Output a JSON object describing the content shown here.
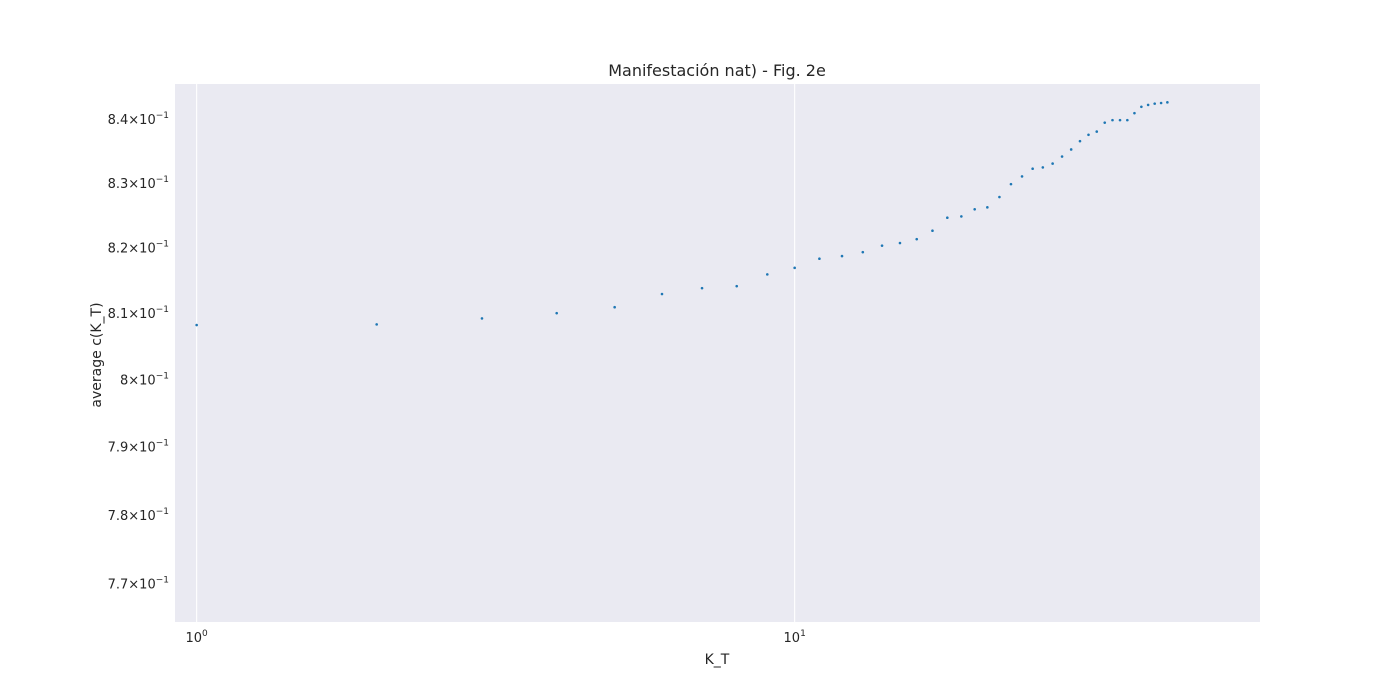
{
  "chart_data": {
    "type": "scatter",
    "title": "Manifestación nat) - Fig. 2e",
    "xlabel": "K_T",
    "ylabel": "average c(K_T)",
    "xscale": "log",
    "yscale": "log",
    "xlim": [
      0.92,
      60
    ],
    "ylim": [
      0.7645,
      0.8455
    ],
    "grid": true,
    "legend": "none",
    "colors": {
      "background": "#eaeaf2",
      "grid": "#ffffff",
      "marker": "#1f77b4",
      "text": "#262626"
    },
    "x_ticks": [
      {
        "value": 1,
        "base": "10",
        "exp": "0"
      },
      {
        "value": 10,
        "base": "10",
        "exp": "1"
      }
    ],
    "y_ticks": [
      {
        "value": 0.77,
        "mant": "7.7",
        "base": "10",
        "exp": "−1"
      },
      {
        "value": 0.78,
        "mant": "7.8",
        "base": "10",
        "exp": "−1"
      },
      {
        "value": 0.79,
        "mant": "7.9",
        "base": "10",
        "exp": "−1"
      },
      {
        "value": 0.8,
        "mant": "8",
        "base": "10",
        "exp": "−1"
      },
      {
        "value": 0.81,
        "mant": "8.1",
        "base": "10",
        "exp": "−1"
      },
      {
        "value": 0.82,
        "mant": "8.2",
        "base": "10",
        "exp": "−1"
      },
      {
        "value": 0.83,
        "mant": "8.3",
        "base": "10",
        "exp": "−1"
      },
      {
        "value": 0.84,
        "mant": "8.4",
        "base": "10",
        "exp": "−1"
      }
    ],
    "x": [
      1,
      2,
      3,
      4,
      5,
      6,
      7,
      8,
      9,
      10,
      11,
      12,
      13,
      14,
      15,
      16,
      17,
      18,
      19,
      20,
      21,
      22,
      23,
      24,
      25,
      26,
      27,
      28,
      29,
      30,
      31,
      32,
      33,
      34,
      35,
      36,
      37,
      38,
      39,
      40,
      41,
      42
    ],
    "y": [
      0.8082,
      0.8083,
      0.8092,
      0.81,
      0.8109,
      0.8129,
      0.8138,
      0.8141,
      0.8159,
      0.8169,
      0.8183,
      0.8187,
      0.8193,
      0.8203,
      0.8207,
      0.8213,
      0.8226,
      0.8246,
      0.8248,
      0.8259,
      0.8262,
      0.8278,
      0.8298,
      0.831,
      0.8322,
      0.8324,
      0.833,
      0.8341,
      0.8352,
      0.8365,
      0.8375,
      0.838,
      0.8394,
      0.8398,
      0.8398,
      0.8398,
      0.8409,
      0.8419,
      0.8422,
      0.8424,
      0.8425,
      0.8426
    ]
  }
}
